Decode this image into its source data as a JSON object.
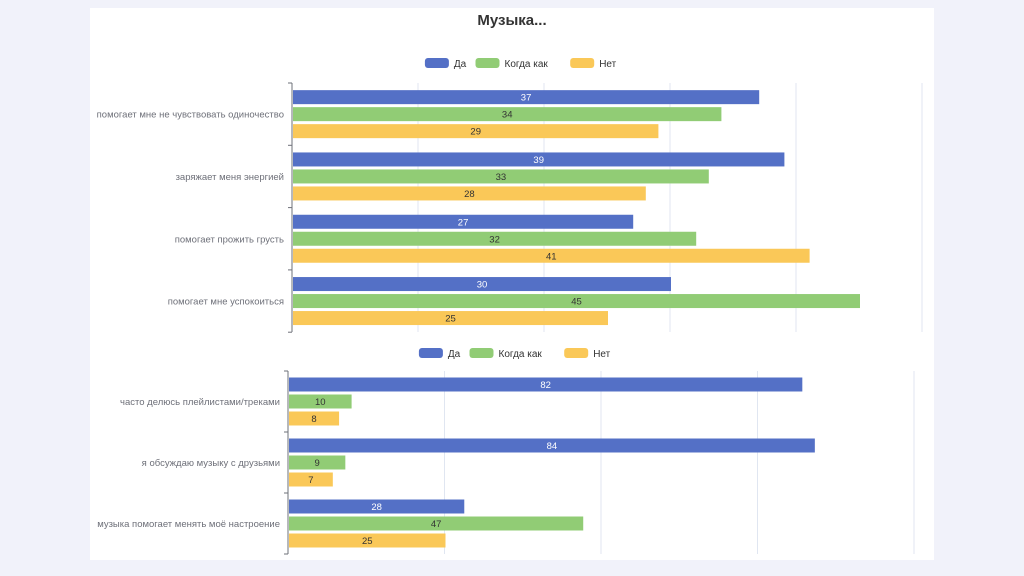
{
  "page": {
    "title": "Музыка..."
  },
  "colors": {
    "da": "#5470c6",
    "kogda": "#91cc75",
    "net": "#fac858",
    "axis": "#6e7079",
    "grid": "#e0e6f1",
    "text": "#6e7079"
  },
  "chart_data": [
    {
      "type": "bar",
      "orientation": "horizontal",
      "title": "Музыка...",
      "legend": [
        "Да",
        "Когда как",
        "Нет"
      ],
      "legend_position": "top-center",
      "categories": [
        "помогает мне не чувствовать одиночество",
        "заряжает меня энергией",
        "помогает прожить грусть",
        "помогает мне успокоиться"
      ],
      "series": [
        {
          "name": "Да",
          "values": [
            37,
            39,
            27,
            30
          ]
        },
        {
          "name": "Когда как",
          "values": [
            34,
            33,
            32,
            45
          ]
        },
        {
          "name": "Нет",
          "values": [
            29,
            28,
            41,
            25
          ]
        }
      ],
      "xlim": [
        0,
        50
      ],
      "grid": true
    },
    {
      "type": "bar",
      "orientation": "horizontal",
      "legend": [
        "Да",
        "Когда как",
        "Нет"
      ],
      "legend_position": "top-center",
      "categories": [
        "часто делюсь плейлистами/треками",
        "я обсуждаю музыку с друзьями",
        "музыка помогает менять моё настроение"
      ],
      "series": [
        {
          "name": "Да",
          "values": [
            82,
            84,
            28
          ]
        },
        {
          "name": "Когда как",
          "values": [
            10,
            9,
            47
          ]
        },
        {
          "name": "Нет",
          "values": [
            8,
            7,
            25
          ]
        }
      ],
      "xlim": [
        0,
        100
      ],
      "grid": true
    }
  ]
}
